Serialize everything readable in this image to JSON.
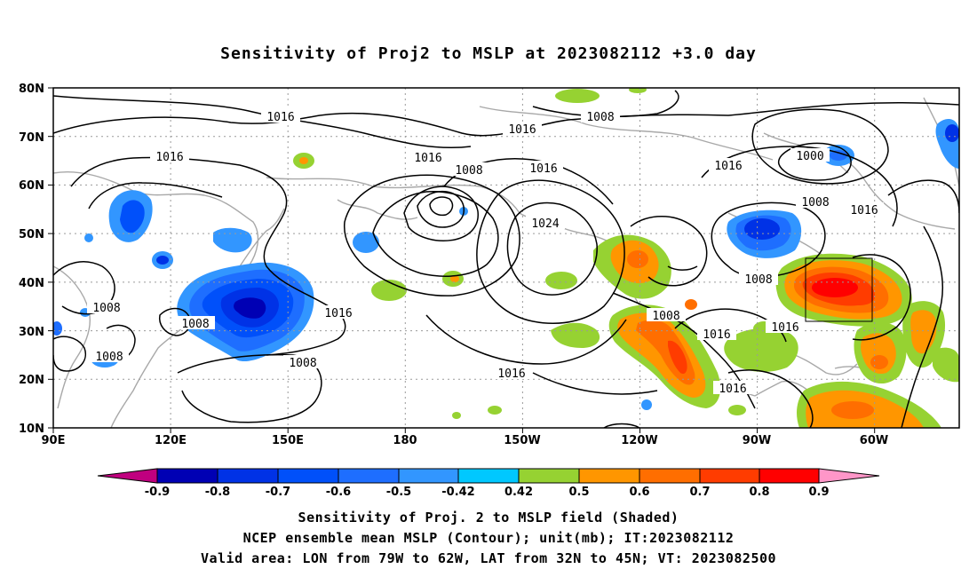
{
  "title": "Sensitivity of Proj2 to MSLP at 2023082112 +3.0 day",
  "lat_ticks": [
    "80N",
    "70N",
    "60N",
    "50N",
    "40N",
    "30N",
    "20N",
    "10N"
  ],
  "lon_ticks": [
    "90E",
    "120E",
    "150E",
    "180",
    "150W",
    "120W",
    "90W",
    "60W"
  ],
  "contour_labels": [
    "1016",
    "1008",
    "1016",
    "1016",
    "1008",
    "1016",
    "1000",
    "1016",
    "1024",
    "1008",
    "1016",
    "1008",
    "1016",
    "1008",
    "1016",
    "1008",
    "1016",
    "1016",
    "1008",
    "1016",
    "1008",
    "1008",
    "1016"
  ],
  "colorbar": {
    "tick_labels": [
      "-0.9",
      "-0.8",
      "-0.7",
      "-0.6",
      "-0.5",
      "-0.42",
      "0.42",
      "0.5",
      "0.6",
      "0.7",
      "0.8",
      "0.9"
    ],
    "colors": [
      "#c0007f",
      "#0000b4",
      "#0032e6",
      "#0050fa",
      "#1e6eff",
      "#3296ff",
      "#00c8ff",
      "#ffffff",
      "#96d232",
      "#ff9600",
      "#ff6e00",
      "#ff3c00",
      "#ff0000",
      "#ff96c8"
    ]
  },
  "valid_box": {
    "lon": [
      "79W",
      "62W"
    ],
    "lat": [
      "32N",
      "45N"
    ]
  },
  "footer": {
    "line1": "Sensitivity of Proj. 2 to MSLP field (Shaded)",
    "line2": "NCEP ensemble mean MSLP (Contour); unit(mb); IT:2023082112",
    "line3": "Valid area: LON from 79W to 62W, LAT from 32N to 45N; VT: 2023082500"
  }
}
